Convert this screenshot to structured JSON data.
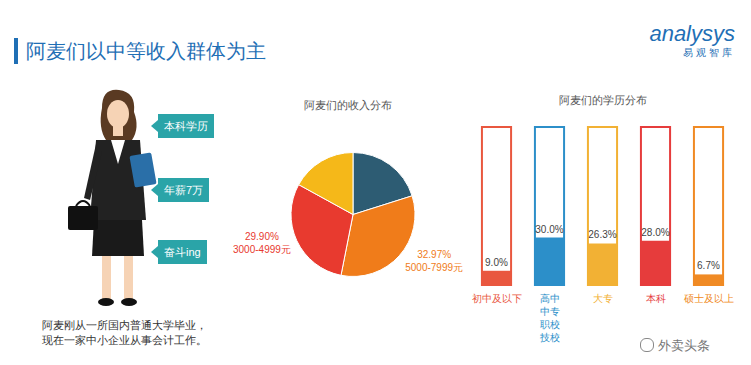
{
  "header": {
    "title": "阿麦们以中等收入群体为主"
  },
  "logo": {
    "name": "analysys",
    "name_cn": "易观智库"
  },
  "persona": {
    "tags": [
      "本科学历",
      "年薪7万",
      "奋斗ing"
    ],
    "caption": "阿麦刚从一所国内普通大学毕业，现在一家中小企业从事会计工作。"
  },
  "watermark": "外卖头条",
  "chart_data": [
    {
      "type": "pie",
      "title": "阿麦们的收入分布",
      "categories": [
        null,
        "5000-7999元",
        "3000-4999元",
        null
      ],
      "values": [
        20.13,
        32.97,
        29.9,
        17.0
      ],
      "value_labels": [
        null,
        "32.97%",
        "29.90%",
        null
      ],
      "colors": [
        "#2d5c73",
        "#f07c1a",
        "#e83a2f",
        "#f5b819"
      ],
      "data_labels": true
    },
    {
      "type": "bar",
      "title": "阿麦们的学历分布",
      "categories": [
        "初中及以下",
        "高中中专职校技校",
        "大专",
        "本科",
        "硕士及以上"
      ],
      "values": [
        9.0,
        30.0,
        26.3,
        28.0,
        6.7
      ],
      "value_labels": [
        "9.0%",
        "30.0%",
        "26.3%",
        "28.0%",
        "6.7%"
      ],
      "colors": [
        "#e9573f",
        "#2c8fc9",
        "#f2b134",
        "#e63c3c",
        "#f08a24"
      ],
      "ylim": [
        0,
        100
      ],
      "tick_labels": "x",
      "data_labels": true
    }
  ]
}
